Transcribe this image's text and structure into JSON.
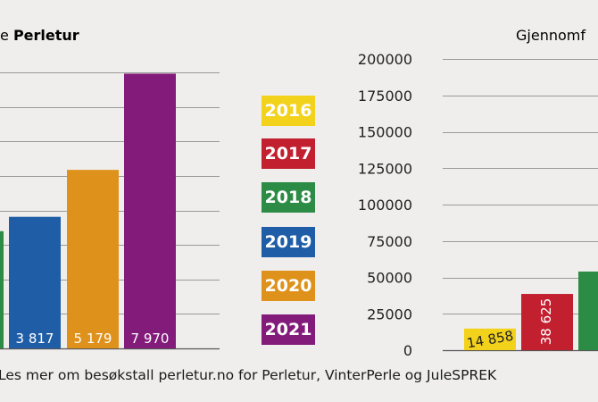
{
  "colors": {
    "2016": "#f3d21c",
    "2017": "#c21f2f",
    "2018": "#2c8c45",
    "2019": "#1f5ea7",
    "2020": "#df921b",
    "2021": "#821b7a",
    "grid": "#9a9a9a",
    "axis": "#555555"
  },
  "legend": [
    {
      "label": "2016",
      "color": "#f3d21c",
      "text_color": "#ffffff"
    },
    {
      "label": "2017",
      "color": "#c21f2f",
      "text_color": "#ffffff"
    },
    {
      "label": "2018",
      "color": "#2c8c45",
      "text_color": "#ffffff"
    },
    {
      "label": "2019",
      "color": "#1f5ea7",
      "text_color": "#ffffff"
    },
    {
      "label": "2020",
      "color": "#df921b",
      "text_color": "#ffffff"
    },
    {
      "label": "2021",
      "color": "#821b7a",
      "text_color": "#ffffff"
    }
  ],
  "footer": {
    "text": "Les mer om besøkstall perletur.no for Perletur, VinterPerle og JuleSPREK"
  },
  "chart_data": [
    {
      "type": "bar",
      "title_prefix": "e ",
      "title_bold": "Perletur",
      "categories": [
        "2018",
        "2019",
        "2020",
        "2021"
      ],
      "values": [
        3400,
        3817,
        5179,
        7970
      ],
      "value_labels": [
        "",
        "3 817",
        "5 179",
        "7 970"
      ],
      "colors": [
        "#2c8c45",
        "#1f5ea7",
        "#df921b",
        "#821b7a"
      ],
      "ylim": [
        0,
        8500
      ],
      "grid_step": 1000,
      "grid": true
    },
    {
      "type": "bar",
      "title": "Gjennomf",
      "categories": [
        "2016",
        "2017",
        "2018"
      ],
      "values": [
        14858,
        38625,
        54000
      ],
      "value_labels": [
        "14 858",
        "38 625",
        ""
      ],
      "colors": [
        "#f3d21c",
        "#c21f2f",
        "#2c8c45"
      ],
      "ylim": [
        0,
        200000
      ],
      "yticks": [
        0,
        25000,
        50000,
        75000,
        100000,
        125000,
        150000,
        175000,
        200000
      ],
      "grid": true
    }
  ]
}
